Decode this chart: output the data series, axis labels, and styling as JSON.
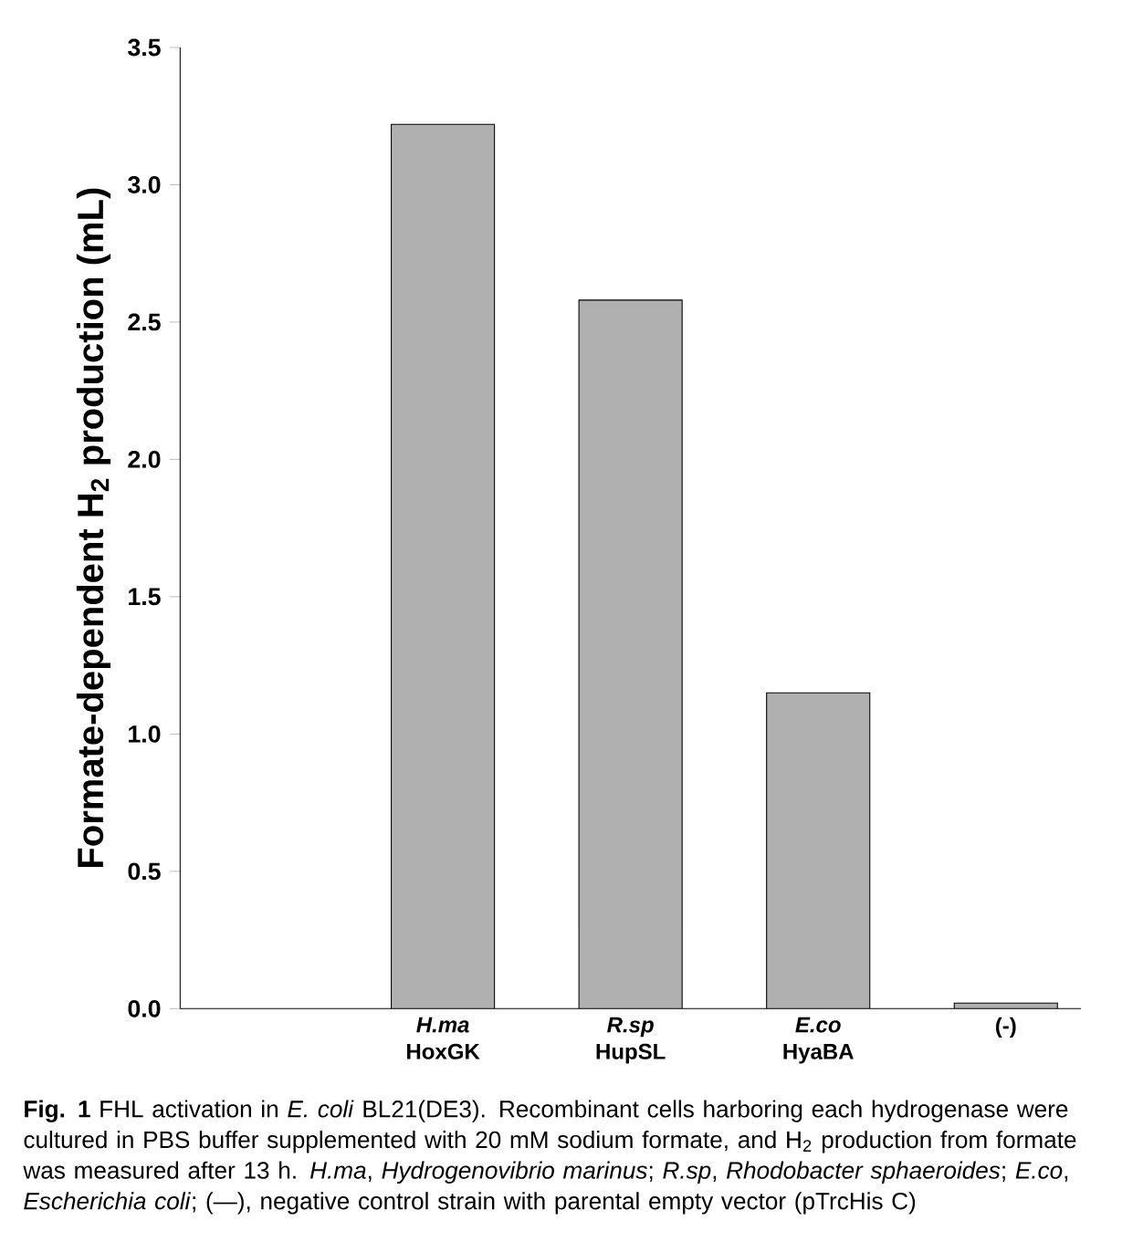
{
  "chart_data": {
    "type": "bar",
    "ylabel": "Formate-dependent H$_{2}$ production (mL)",
    "categories": [
      "*H.ma* HoxGK",
      "*R.sp* HupSL",
      "*E.co* HyaBA",
      "(-)"
    ],
    "values": [
      3.22,
      2.58,
      1.15,
      0.02
    ],
    "color": "#b0b0b0",
    "ylim": [
      0,
      3.5
    ],
    "yticks": [
      {
        "value": 0,
        "label": "0.0"
      },
      {
        "value": 0.5,
        "label": "0.5"
      },
      {
        "value": 1,
        "label": "1.0"
      },
      {
        "value": 1.5,
        "label": "1.5"
      },
      {
        "value": 2,
        "label": "2.0"
      },
      {
        "value": 2.5,
        "label": "2.5"
      },
      {
        "value": 3,
        "label": "3.0"
      },
      {
        "value": 3.5,
        "label": "3.5"
      }
    ],
    "annotations": [
      "**Fig. 1** FHL activation in *E. coli* BL21(DE3). Recombinant cells harboring each hydrogenase were cultured in PBS buffer supplemented with 20 mM sodium formate, and H$_{2}$ production from formate was measured after 13 h. *H.ma*, *Hydrogenovibrio marinus*; *R.sp*, *Rhodobacter sphaeroides*; *E.co*, *Escherichia coli*; (—), negative control strain with parental empty vector (pTrcHis C)"
    ]
  }
}
